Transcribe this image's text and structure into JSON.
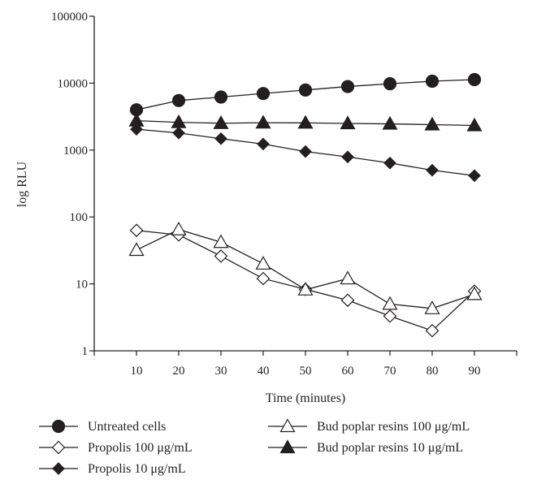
{
  "chart_data": {
    "type": "line",
    "title": "",
    "xlabel": "Time (minutes)",
    "ylabel": "log RLU",
    "x": [
      10,
      20,
      30,
      40,
      50,
      60,
      70,
      80,
      90
    ],
    "xlim": [
      0,
      100
    ],
    "ylim": [
      1,
      100000
    ],
    "yscale": "log",
    "x_ticks": [
      "10",
      "20",
      "30",
      "40",
      "50",
      "60",
      "70",
      "80",
      "90"
    ],
    "y_ticks": [
      "1",
      "10",
      "100",
      "1000",
      "10000",
      "100000"
    ],
    "grid": false,
    "legend_position": "bottom",
    "series": [
      {
        "name": "Untreated cells",
        "marker": "circle-filled",
        "values": [
          4000,
          5500,
          6200,
          7000,
          7900,
          8900,
          9800,
          10700,
          11300
        ]
      },
      {
        "name": "Propolis 100 μg/mL",
        "marker": "diamond-open",
        "values": [
          63,
          54,
          26,
          12,
          8.3,
          5.7,
          3.3,
          2.0,
          7.8
        ]
      },
      {
        "name": "Propolis 10 μg/mL",
        "marker": "diamond-filled",
        "values": [
          2050,
          1800,
          1480,
          1230,
          950,
          790,
          640,
          500,
          415
        ]
      },
      {
        "name": "Bud poplar resins 100 μg/mL",
        "marker": "triangle-open",
        "values": [
          32,
          65,
          42,
          20,
          8.2,
          12,
          5.0,
          4.3,
          7.0
        ]
      },
      {
        "name": "Bud poplar resins 10 μg/mL",
        "marker": "triangle-filled",
        "values": [
          2750,
          2600,
          2520,
          2560,
          2550,
          2500,
          2460,
          2400,
          2330
        ]
      }
    ]
  }
}
